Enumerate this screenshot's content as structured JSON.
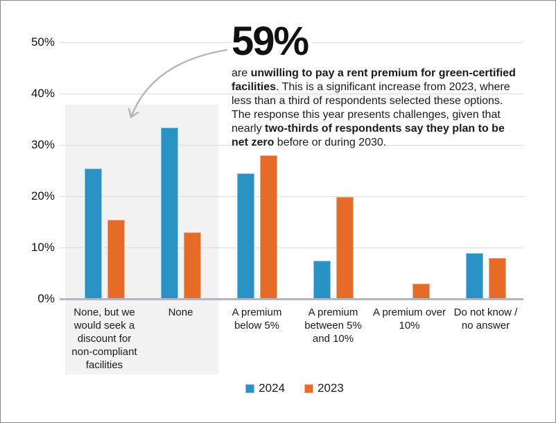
{
  "callout": {
    "headline": "59%",
    "paragraph_lines": [
      [
        {
          "t": "are ",
          "b": false
        },
        {
          "t": "unwilling to pay a rent premium for green-certified",
          "b": true
        }
      ],
      [
        {
          "t": "facilities",
          "b": true
        },
        {
          "t": ". This is a significant increase from 2023, where",
          "b": false
        }
      ],
      [
        {
          "t": "less than a third of respondents selected these options.",
          "b": false
        }
      ],
      [
        {
          "t": "The response this year presents challenges, given that",
          "b": false
        }
      ],
      [
        {
          "t": "nearly ",
          "b": false
        },
        {
          "t": "two-thirds of respondents say they plan to be",
          "b": true
        }
      ],
      [
        {
          "t": "net zero",
          "b": true
        },
        {
          "t": " before or during 2030.",
          "b": false
        }
      ]
    ]
  },
  "chart_data": {
    "type": "bar",
    "categories": [
      "None, but we would seek a discount for non-compliant facilities",
      "None",
      "A premium below 5%",
      "A premium between 5% and 10%",
      "A premium over 10%",
      "Do not know / no answer"
    ],
    "series": [
      {
        "name": "2024",
        "color": "#2892C4",
        "values": [
          25.5,
          33.5,
          24.5,
          7.5,
          0,
          9
        ]
      },
      {
        "name": "2023",
        "color": "#E56B26",
        "values": [
          15.5,
          13,
          28,
          20,
          3,
          8
        ]
      }
    ],
    "title": "",
    "xlabel": "",
    "ylabel": "",
    "ylim": [
      0,
      50
    ],
    "yticks": [
      {
        "value": 50,
        "label": "50%"
      },
      {
        "value": 40,
        "label": "40%"
      },
      {
        "value": 30,
        "label": "30%"
      },
      {
        "value": 20,
        "label": "20%"
      },
      {
        "value": 10,
        "label": "10%"
      },
      {
        "value": 0,
        "label": "0%"
      }
    ],
    "grid": true,
    "legend_position": "bottom",
    "highlight_region": {
      "spans_categories": [
        "None, but we would seek a discount for non-compliant facilities",
        "None"
      ],
      "color": "#F2F2F2",
      "top_value": 38
    }
  },
  "legend": {
    "items": [
      {
        "label": "2024",
        "color": "#2892C4"
      },
      {
        "label": "2023",
        "color": "#E56B26"
      }
    ]
  },
  "style_colors": {
    "gridline": "#DCDCDC",
    "axis_baseline": "#B2B7C0",
    "arrow": "#AFB4BD",
    "highlight": "#F2F2F2"
  }
}
